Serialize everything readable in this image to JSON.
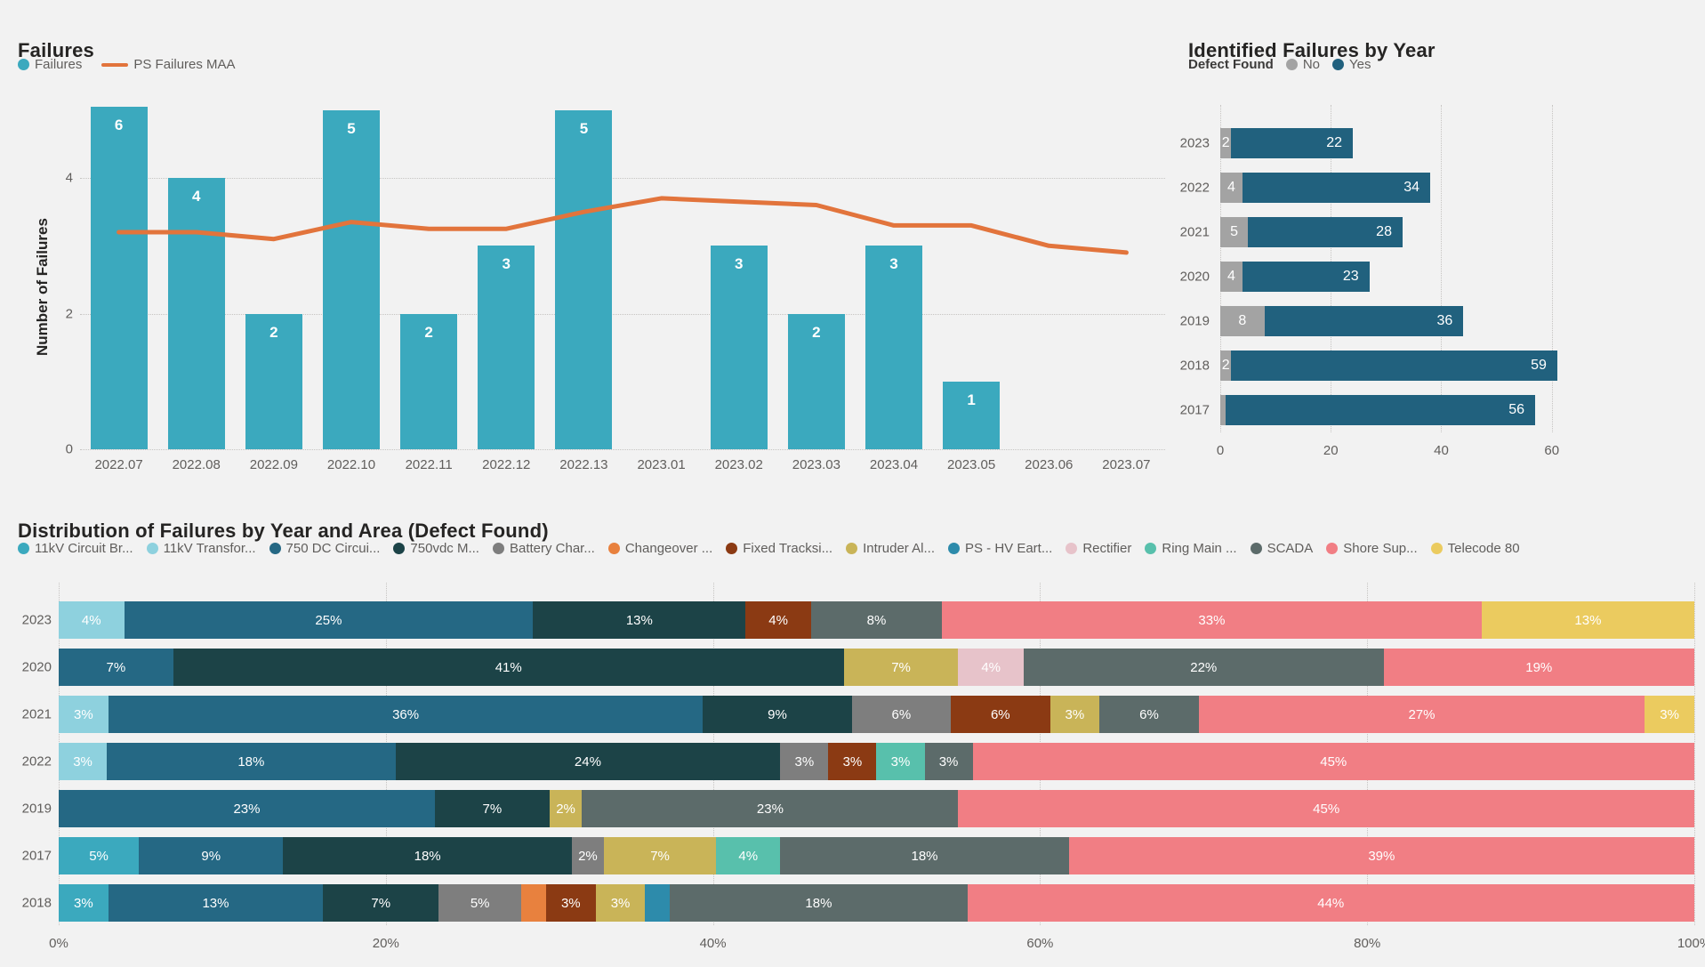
{
  "colors": {
    "background": "#F2F2F2",
    "title_text": "#252423",
    "axis_text": "#605E5C",
    "grid": "#C6C4C2",
    "bar_teal": "#3BA9BE",
    "line_orange": "#E2743C",
    "defect_no": "#A3A3A3",
    "defect_yes": "#21617E",
    "areas": {
      "circuit": "#3BA9BE",
      "transformer": "#8ED1DE",
      "dc750": "#256884",
      "vdc750": "#1C4347",
      "battery": "#7E7E7E",
      "changeover": "#E8813E",
      "fixed": "#8B3A13",
      "intruder": "#C9B458",
      "pshv": "#2D8BAB",
      "rectifier": "#E7C3CA",
      "ringmain": "#58C0AC",
      "scada": "#5C6B6A",
      "shore": "#F17E84",
      "telecode": "#EBCB5F"
    }
  },
  "chart_data": [
    {
      "type": "bar",
      "subtype": "combo-bar-line",
      "title": "Failures",
      "legend_bar": "Failures",
      "legend_line": "PS Failures MAA",
      "ylabel": "Number of Failures",
      "y_ticks": [
        0,
        2,
        4
      ],
      "ylim": [
        0,
        5.05
      ],
      "categories": [
        "2022.07",
        "2022.08",
        "2022.09",
        "2022.10",
        "2022.11",
        "2022.12",
        "2022.13",
        "2023.01",
        "2023.02",
        "2023.03",
        "2023.04",
        "2023.05",
        "2023.06",
        "2023.07"
      ],
      "values": [
        6,
        4,
        2,
        5,
        2,
        3,
        5,
        null,
        3,
        2,
        3,
        1,
        null,
        null
      ],
      "line_series": {
        "name": "PS Failures MAA",
        "values": [
          3.2,
          3.2,
          3.1,
          3.35,
          3.25,
          3.25,
          3.5,
          3.7,
          3.65,
          3.6,
          3.3,
          3.3,
          3.0,
          2.9
        ]
      },
      "grid": "horizontal-dotted",
      "legend_position": "top-left"
    },
    {
      "type": "bar",
      "subtype": "horizontal-stacked",
      "title": "Identified Failures by Year",
      "legend_title": "Defect Found",
      "legend_no": "No",
      "legend_yes": "Yes",
      "x_ticks": [
        0,
        20,
        40,
        60
      ],
      "xlim": [
        0,
        85
      ],
      "categories": [
        "2023",
        "2022",
        "2021",
        "2020",
        "2019",
        "2018",
        "2017"
      ],
      "series": [
        {
          "name": "No",
          "values": [
            2,
            4,
            5,
            4,
            8,
            2,
            1
          ]
        },
        {
          "name": "Yes",
          "values": [
            22,
            34,
            28,
            23,
            36,
            59,
            56
          ]
        }
      ],
      "no_label_visible": [
        true,
        true,
        true,
        true,
        true,
        true,
        false
      ],
      "grid": "vertical-dotted",
      "legend_position": "top-left"
    },
    {
      "type": "bar",
      "subtype": "horizontal-100pct-stacked",
      "title": "Distribution of Failures by Year and Area (Defect Found)",
      "x_ticks": [
        "0%",
        "20%",
        "40%",
        "60%",
        "80%",
        "100%"
      ],
      "legend": [
        {
          "key": "circuit",
          "label": "11kV Circuit Br..."
        },
        {
          "key": "transformer",
          "label": "11kV Transfor..."
        },
        {
          "key": "dc750",
          "label": "750 DC Circui..."
        },
        {
          "key": "vdc750",
          "label": "750vdc M..."
        },
        {
          "key": "battery",
          "label": "Battery Char..."
        },
        {
          "key": "changeover",
          "label": "Changeover ..."
        },
        {
          "key": "fixed",
          "label": "Fixed Tracksi..."
        },
        {
          "key": "intruder",
          "label": "Intruder Al..."
        },
        {
          "key": "pshv",
          "label": "PS - HV Eart..."
        },
        {
          "key": "rectifier",
          "label": "Rectifier"
        },
        {
          "key": "ringmain",
          "label": "Ring Main ..."
        },
        {
          "key": "scada",
          "label": "SCADA"
        },
        {
          "key": "shore",
          "label": "Shore Sup..."
        },
        {
          "key": "telecode",
          "label": "Telecode 80"
        }
      ],
      "rows": [
        {
          "year": "2023",
          "segments": [
            [
              "transformer",
              4,
              true
            ],
            [
              "dc750",
              25,
              true
            ],
            [
              "vdc750",
              13,
              true
            ],
            [
              "fixed",
              4,
              true
            ],
            [
              "scada",
              8,
              true
            ],
            [
              "shore",
              33,
              true
            ],
            [
              "telecode",
              13,
              true
            ]
          ]
        },
        {
          "year": "2020",
          "segments": [
            [
              "dc750",
              7,
              true
            ],
            [
              "vdc750",
              41,
              true
            ],
            [
              "intruder",
              7,
              true
            ],
            [
              "rectifier",
              4,
              true
            ],
            [
              "scada",
              22,
              true
            ],
            [
              "shore",
              19,
              true
            ]
          ]
        },
        {
          "year": "2021",
          "segments": [
            [
              "transformer",
              3,
              true
            ],
            [
              "dc750",
              36,
              true
            ],
            [
              "vdc750",
              9,
              true
            ],
            [
              "battery",
              6,
              true
            ],
            [
              "fixed",
              6,
              true
            ],
            [
              "intruder",
              3,
              true
            ],
            [
              "scada",
              6,
              true
            ],
            [
              "shore",
              27,
              true
            ],
            [
              "telecode",
              3,
              true
            ]
          ]
        },
        {
          "year": "2022",
          "segments": [
            [
              "transformer",
              3,
              true
            ],
            [
              "dc750",
              18,
              true
            ],
            [
              "vdc750",
              24,
              true
            ],
            [
              "battery",
              3,
              true
            ],
            [
              "fixed",
              3,
              true
            ],
            [
              "ringmain",
              3,
              true
            ],
            [
              "scada",
              3,
              true
            ],
            [
              "shore",
              45,
              true
            ]
          ]
        },
        {
          "year": "2019",
          "segments": [
            [
              "dc750",
              23,
              true
            ],
            [
              "vdc750",
              7,
              true
            ],
            [
              "intruder",
              2,
              true
            ],
            [
              "scada",
              23,
              true
            ],
            [
              "shore",
              45,
              true
            ]
          ]
        },
        {
          "year": "2017",
          "segments": [
            [
              "circuit",
              5,
              true
            ],
            [
              "dc750",
              9,
              true
            ],
            [
              "vdc750",
              18,
              true
            ],
            [
              "battery",
              2,
              true
            ],
            [
              "intruder",
              7,
              true
            ],
            [
              "ringmain",
              4,
              true
            ],
            [
              "scada",
              18,
              true
            ],
            [
              "shore",
              39,
              true
            ]
          ]
        },
        {
          "year": "2018",
          "segments": [
            [
              "circuit",
              3,
              true
            ],
            [
              "dc750",
              13,
              true
            ],
            [
              "vdc750",
              7,
              true
            ],
            [
              "battery",
              5,
              true
            ],
            [
              "changeover",
              1.5,
              false
            ],
            [
              "fixed",
              3,
              true
            ],
            [
              "intruder",
              3,
              true
            ],
            [
              "pshv",
              1.5,
              false
            ],
            [
              "scada",
              18,
              true
            ],
            [
              "shore",
              44,
              true
            ]
          ]
        }
      ],
      "grid": "vertical-dotted",
      "legend_position": "top-left"
    }
  ]
}
